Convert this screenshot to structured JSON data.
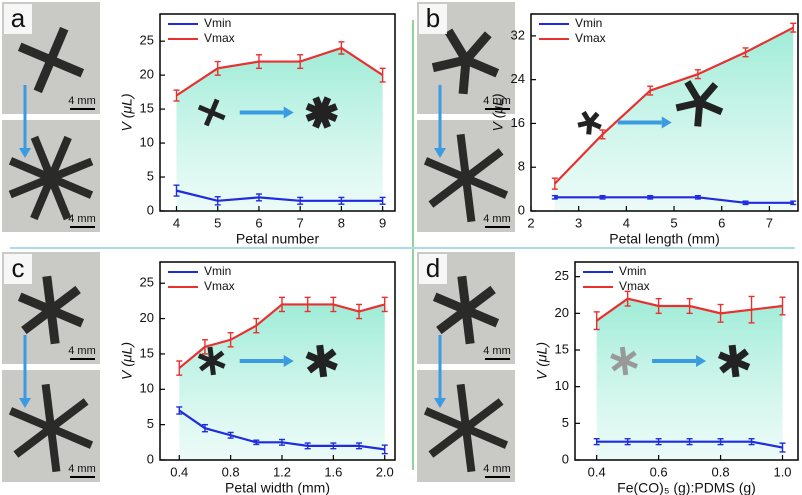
{
  "chart_data": [
    {
      "type": "line",
      "panel_label": "a",
      "scale_bars": [
        "4 mm",
        "4 mm"
      ],
      "x_label": "Petal number",
      "y_label": "V (μL)",
      "x": [
        4,
        5,
        6,
        7,
        8,
        9
      ],
      "xlim": [
        3.6,
        9.3
      ],
      "xticks": [
        4,
        5,
        6,
        7,
        8,
        9
      ],
      "ylim": [
        0,
        29
      ],
      "yticks": [
        0,
        5,
        10,
        15,
        20,
        25
      ],
      "series": [
        {
          "name": "Vmin",
          "color": "#1f2be0",
          "values": [
            3,
            1.5,
            2,
            1.5,
            1.5,
            1.5
          ],
          "errors": [
            0.8,
            0.6,
            0.5,
            0.5,
            0.5,
            0.5
          ]
        },
        {
          "name": "Vmax",
          "color": "#e8302f",
          "values": [
            17,
            21,
            22,
            22,
            24,
            20
          ],
          "errors": [
            0.8,
            1,
            1,
            1,
            0.9,
            1
          ]
        }
      ]
    },
    {
      "type": "line",
      "panel_label": "b",
      "scale_bars": [
        "4 mm",
        "4 mm"
      ],
      "x_label": "Petal length (mm)",
      "y_label": "V (μL)",
      "x": [
        2.5,
        3.5,
        4.5,
        5.5,
        6.5,
        7.5
      ],
      "xlim": [
        2,
        7.6
      ],
      "xticks": [
        2,
        3,
        4,
        5,
        6,
        7
      ],
      "ylim": [
        0,
        36
      ],
      "yticks": [
        0,
        8,
        16,
        24,
        32
      ],
      "series": [
        {
          "name": "Vmin",
          "color": "#1f2be0",
          "values": [
            2.5,
            2.5,
            2.5,
            2.5,
            1.5,
            1.5
          ],
          "errors": [
            0.3,
            0.3,
            0.3,
            0.3,
            0.3,
            0.3
          ]
        },
        {
          "name": "Vmax",
          "color": "#e8302f",
          "values": [
            5,
            14,
            22,
            25,
            29,
            33.5
          ],
          "errors": [
            1,
            0.8,
            0.8,
            0.8,
            0.8,
            0.8
          ]
        }
      ]
    },
    {
      "type": "line",
      "panel_label": "c",
      "scale_bars": [
        "4 mm",
        "4 mm"
      ],
      "x_label": "Petal width (mm)",
      "y_label": "V (μL)",
      "x": [
        0.4,
        0.6,
        0.8,
        1.0,
        1.2,
        1.4,
        1.6,
        1.8,
        2.0
      ],
      "xlim": [
        0.25,
        2.08
      ],
      "xticks": [
        0.4,
        0.8,
        1.2,
        1.6,
        {
          "value": 2,
          "label": "2.0"
        }
      ],
      "ylim": [
        0,
        28
      ],
      "yticks": [
        0,
        5,
        10,
        15,
        20,
        25
      ],
      "series": [
        {
          "name": "Vmin",
          "color": "#1f2be0",
          "values": [
            7,
            4.5,
            3.5,
            2.5,
            2.5,
            2,
            2,
            2,
            1.5
          ],
          "errors": [
            0.5,
            0.5,
            0.4,
            0.3,
            0.4,
            0.4,
            0.4,
            0.4,
            0.6
          ]
        },
        {
          "name": "Vmax",
          "color": "#e8302f",
          "values": [
            13,
            16,
            17,
            19,
            22,
            22,
            22,
            21,
            22
          ],
          "errors": [
            1,
            1,
            1,
            1,
            1,
            1,
            1,
            1,
            1
          ]
        }
      ]
    },
    {
      "type": "line",
      "panel_label": "d",
      "scale_bars": [
        "4 mm",
        "4 mm"
      ],
      "x_label": "Fe(CO)₅ (g):PDMS (g)",
      "y_label": "V (μL)",
      "x": [
        0.4,
        0.5,
        0.6,
        0.7,
        0.8,
        0.9,
        1.0
      ],
      "xlim": [
        0.33,
        1.05
      ],
      "xticks": [
        0.4,
        0.6,
        0.8,
        {
          "value": 1,
          "label": "1.0"
        }
      ],
      "ylim": [
        0,
        27
      ],
      "yticks": [
        0,
        5,
        10,
        15,
        20,
        25
      ],
      "series": [
        {
          "name": "Vmin",
          "color": "#1f2be0",
          "values": [
            2.5,
            2.5,
            2.5,
            2.5,
            2.5,
            2.5,
            1.7
          ],
          "errors": [
            0.4,
            0.4,
            0.4,
            0.4,
            0.4,
            0.4,
            0.6
          ]
        },
        {
          "name": "Vmax",
          "color": "#e8302f",
          "values": [
            19,
            22,
            21,
            21,
            20,
            20.5,
            21
          ],
          "errors": [
            1.2,
            1,
            1,
            1,
            1.2,
            1.8,
            1.2
          ]
        }
      ]
    }
  ]
}
